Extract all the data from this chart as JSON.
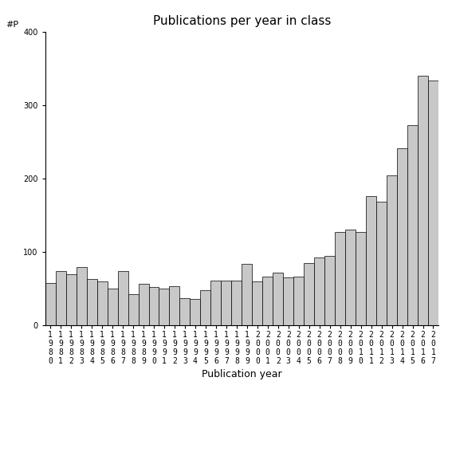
{
  "title": "Publications per year in class",
  "xlabel": "Publication year",
  "ylabel": "#P",
  "ylim": [
    0,
    400
  ],
  "yticks": [
    0,
    100,
    200,
    300,
    400
  ],
  "bar_color": "#c8c8c8",
  "bar_edge_color": "#000000",
  "bar_edge_width": 0.5,
  "background_color": "#ffffff",
  "years": [
    "1980",
    "1981",
    "1982",
    "1983",
    "1984",
    "1985",
    "1986",
    "1987",
    "1988",
    "1989",
    "1990",
    "1991",
    "1992",
    "1993",
    "1994",
    "1995",
    "1996",
    "1997",
    "1998",
    "1999",
    "2000",
    "2001",
    "2002",
    "2003",
    "2004",
    "2005",
    "2006",
    "2007",
    "2008",
    "2009",
    "2010",
    "2011",
    "2012",
    "2013",
    "2014",
    "2015",
    "2016",
    "2017"
  ],
  "values": [
    58,
    74,
    70,
    80,
    63,
    60,
    50,
    74,
    43,
    57,
    52,
    50,
    53,
    37,
    36,
    48,
    61,
    61,
    61,
    84,
    60,
    67,
    72,
    65,
    67,
    85,
    93,
    95,
    127,
    130,
    127,
    176,
    168,
    204,
    241,
    273,
    340,
    333
  ],
  "title_fontsize": 11,
  "tick_fontsize": 7,
  "label_fontsize": 9,
  "ylabel_fontsize": 8
}
